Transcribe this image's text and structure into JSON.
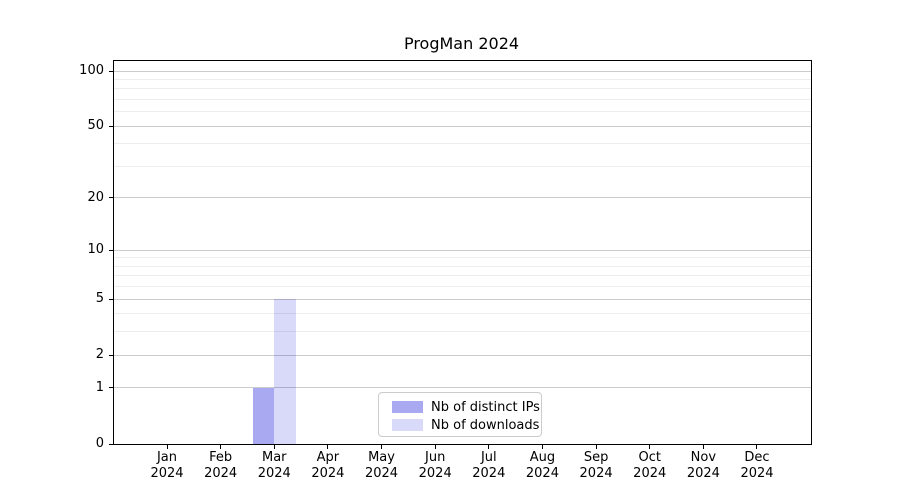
{
  "chart_data": {
    "type": "bar",
    "title": "ProgMan 2024",
    "categories": [
      "Jan 2024",
      "Feb 2024",
      "Mar 2024",
      "Apr 2024",
      "May 2024",
      "Jun 2024",
      "Jul 2024",
      "Aug 2024",
      "Sep 2024",
      "Oct 2024",
      "Nov 2024",
      "Dec 2024"
    ],
    "series": [
      {
        "name": "Nb of distinct IPs",
        "color": "#a9a9f2",
        "values": [
          0,
          0,
          1,
          0,
          0,
          0,
          0,
          0,
          0,
          0,
          0,
          0
        ]
      },
      {
        "name": "Nb of downloads",
        "color": "#d9d9fa",
        "values": [
          0,
          0,
          5,
          0,
          0,
          0,
          0,
          0,
          0,
          0,
          0,
          0
        ]
      }
    ],
    "xlabel": "",
    "ylabel": "",
    "yscale": "log1p",
    "ylim": [
      0,
      112
    ],
    "yticks": [
      0,
      1,
      2,
      5,
      10,
      20,
      50,
      100
    ],
    "yticks_minor": [
      3,
      4,
      6,
      7,
      8,
      9,
      30,
      40,
      60,
      70,
      80,
      90
    ],
    "grid": "horizontal",
    "legend_position": "lower center"
  }
}
